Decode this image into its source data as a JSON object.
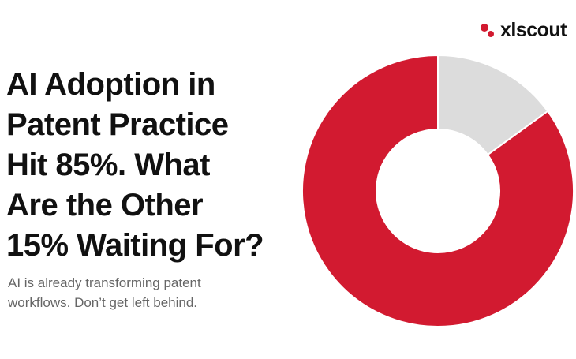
{
  "brand": "xlscout",
  "chart_data": {
    "type": "donut",
    "title_lines": [
      "AI Adoption in",
      "Patent Practice",
      "Hit 85%. What",
      "Are the Other",
      "15% Waiting For?"
    ],
    "subtitle_lines": [
      "AI is already transforming patent",
      "workflows. Don’t get left behind."
    ],
    "values": [
      15,
      85
    ],
    "colors": [
      "#dcdcdc",
      "#d21a30"
    ]
  }
}
